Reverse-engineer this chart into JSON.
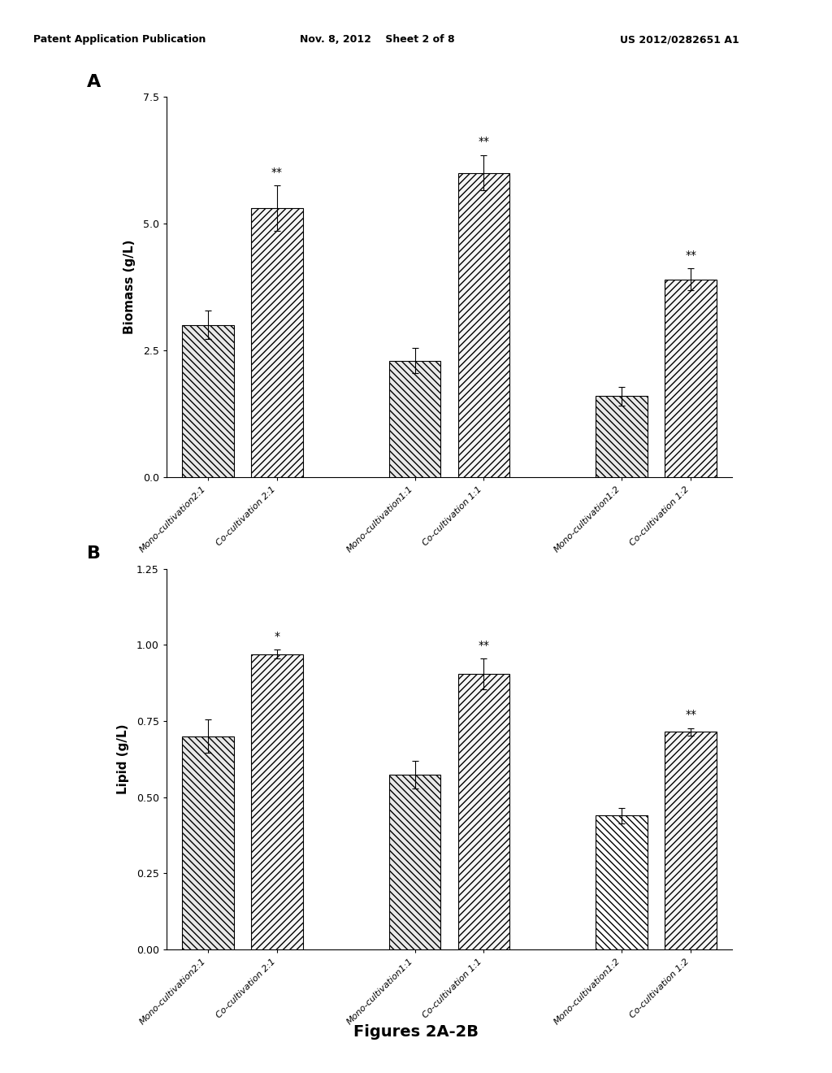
{
  "panel_A": {
    "label": "A",
    "categories": [
      "Mono-cultivation2:1",
      "Co-cultivation 2:1",
      "Mono-cultivation1:1",
      "Co-cultivation 1:1",
      "Mono-cultivation1:2",
      "Co-cultivation 1:2"
    ],
    "values": [
      3.0,
      5.3,
      2.3,
      6.0,
      1.6,
      3.9
    ],
    "errors": [
      0.28,
      0.45,
      0.25,
      0.35,
      0.18,
      0.22
    ],
    "significance": [
      "",
      "**",
      "",
      "**",
      "",
      "**"
    ],
    "ylabel": "Biomass (g/L)",
    "ylim": [
      0.0,
      7.5
    ],
    "yticks": [
      0.0,
      2.5,
      5.0,
      7.5
    ],
    "yticklabels": [
      "0.0",
      "2.5",
      "5.0",
      "7.5"
    ],
    "hatch_patterns": [
      "\\\\\\\\",
      "////",
      "\\\\\\\\",
      "////",
      "\\\\\\\\",
      "////"
    ],
    "face_colors": [
      "#e8e8e8",
      "#f5f5f5",
      "#e8e8e8",
      "#f5f5f5",
      "#e8e8e8",
      "#f5f5f5"
    ]
  },
  "panel_B": {
    "label": "B",
    "categories": [
      "Mono-cultivation2:1",
      "Co-cultivation 2:1",
      "Mono-cultivation1:1",
      "Co-cultivation 1:1",
      "Mono-cultivation1:2",
      "Co-cultivation 1:2"
    ],
    "values": [
      0.7,
      0.97,
      0.575,
      0.905,
      0.44,
      0.715
    ],
    "errors": [
      0.055,
      0.015,
      0.045,
      0.05,
      0.025,
      0.012
    ],
    "significance": [
      "",
      "*",
      "",
      "**",
      "",
      "**"
    ],
    "ylabel": "Lipid (g/L)",
    "ylim": [
      0.0,
      1.25
    ],
    "yticks": [
      0.0,
      0.25,
      0.5,
      0.75,
      1.0,
      1.25
    ],
    "yticklabels": [
      "0.00",
      "0.25",
      "0.50",
      "0.75",
      "1.00",
      "1.25"
    ],
    "hatch_patterns": [
      "\\\\\\\\",
      "////",
      "\\\\\\\\",
      "////",
      "\\\\\\\\",
      "////"
    ],
    "face_colors": [
      "#e8e8e8",
      "#f5f5f5",
      "#e8e8e8",
      "#f5f5f5",
      "#ffffff",
      "#f5f5f5"
    ]
  },
  "figure_caption": "Figures 2A-2B",
  "header_left": "Patent Application Publication",
  "header_center": "Nov. 8, 2012    Sheet 2 of 8",
  "header_right": "US 2012/0282651 A1",
  "background_color": "#ffffff",
  "bar_edgecolor": "#000000"
}
